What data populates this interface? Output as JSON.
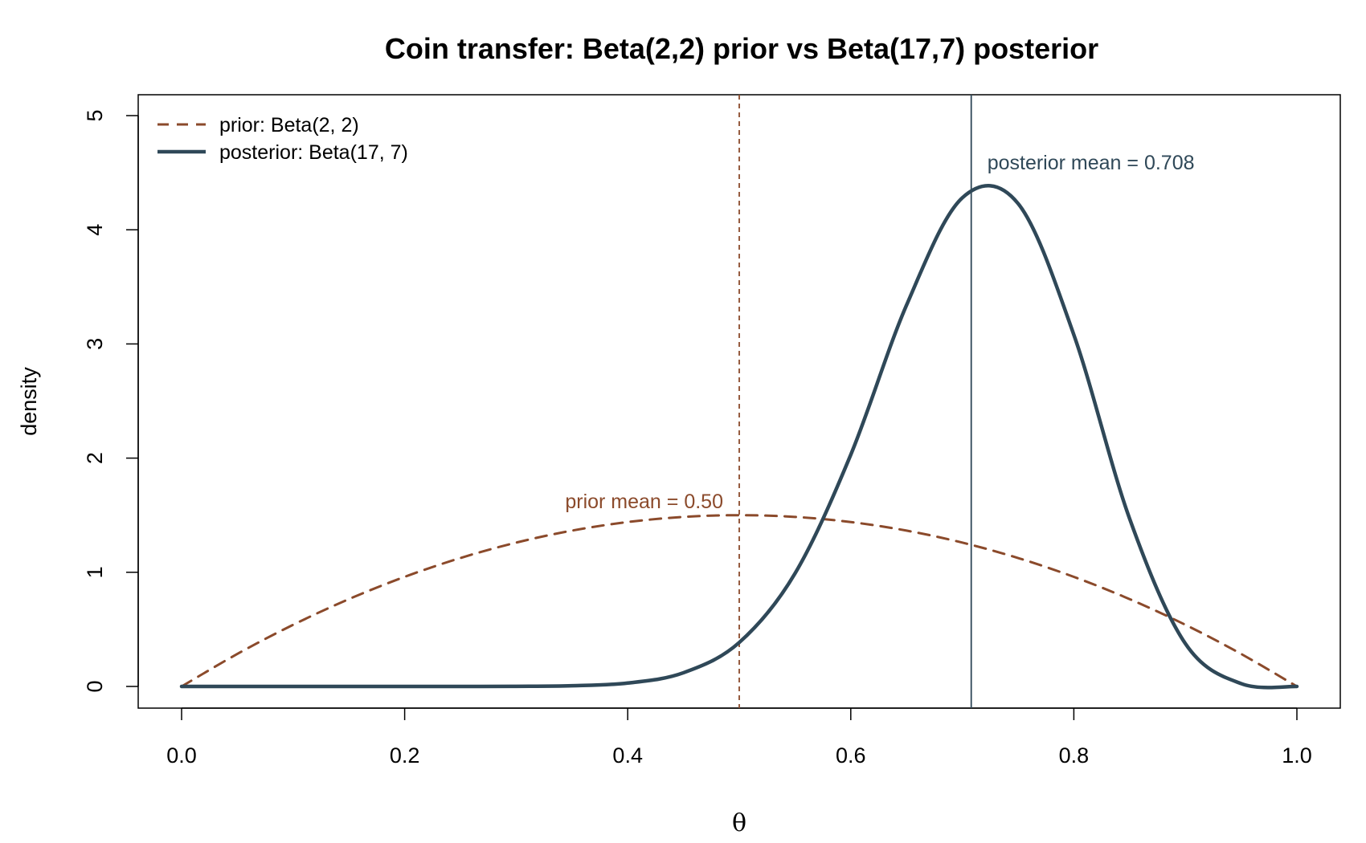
{
  "chart_data": {
    "type": "line",
    "title": "Coin transfer: Beta(2,2) prior vs Beta(17,7) posterior",
    "xlabel": "θ",
    "ylabel": "density",
    "xlim": [
      0,
      1
    ],
    "ylim": [
      0,
      5
    ],
    "x_ticks": [
      "0.0",
      "0.2",
      "0.4",
      "0.6",
      "0.8",
      "1.0"
    ],
    "y_ticks": [
      "0",
      "1",
      "2",
      "3",
      "4",
      "5"
    ],
    "grid": false,
    "legend_position": "top-left",
    "series": [
      {
        "name": "prior: Beta(2, 2)",
        "color": "#8B4A2B",
        "style": "dashed",
        "x": [
          0,
          0.05,
          0.1,
          0.15,
          0.2,
          0.25,
          0.3,
          0.35,
          0.4,
          0.45,
          0.5,
          0.55,
          0.6,
          0.65,
          0.7,
          0.75,
          0.8,
          0.85,
          0.9,
          0.95,
          1
        ],
        "y": [
          0,
          0.285,
          0.54,
          0.765,
          0.96,
          1.125,
          1.26,
          1.365,
          1.44,
          1.485,
          1.5,
          1.485,
          1.44,
          1.365,
          1.26,
          1.125,
          0.96,
          0.765,
          0.54,
          0.285,
          0
        ]
      },
      {
        "name": "posterior: Beta(17, 7)",
        "color": "#2F4858",
        "style": "solid",
        "x": [
          0,
          0.05,
          0.1,
          0.15,
          0.2,
          0.25,
          0.3,
          0.35,
          0.4,
          0.45,
          0.5,
          0.55,
          0.6,
          0.65,
          0.7,
          0.75,
          0.8,
          0.85,
          0.9,
          0.95,
          1
        ],
        "y": [
          0,
          0,
          0,
          0,
          0,
          0,
          0.001,
          0.006,
          0.03,
          0.12,
          0.385,
          0.99,
          2.03,
          3.34,
          4.28,
          4.23,
          3.08,
          1.47,
          0.375,
          0.025,
          0
        ]
      }
    ],
    "vlines": [
      {
        "x": 0.5,
        "color": "#8B4A2B",
        "style": "dashed",
        "label": "prior mean = 0.50"
      },
      {
        "x": 0.708,
        "color": "#2F4858",
        "style": "solid",
        "label": "posterior mean = 0.708"
      }
    ]
  }
}
